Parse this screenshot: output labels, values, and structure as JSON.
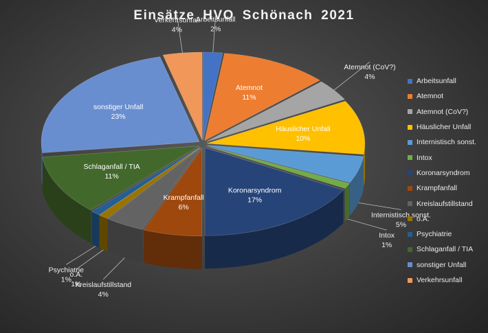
{
  "chart_data": {
    "type": "pie",
    "title": "Einsätze  HVO Schönach  2021",
    "legend_position": "right",
    "label_format": "{category}\n{percent}",
    "slices": [
      {
        "category": "Arbeitsunfall",
        "label": "Arbeitsunfall",
        "value": 2,
        "percent": "2%",
        "color": "#4472c4"
      },
      {
        "category": "Atemnot",
        "label": "Atemnot",
        "value": 11,
        "percent": "11%",
        "color": "#ed7d31"
      },
      {
        "category": "Atemnot (CoV?)",
        "label": "Atemnot (CoV?)",
        "value": 4,
        "percent": "4%",
        "color": "#a5a5a5"
      },
      {
        "category": "Häuslicher Unfall",
        "label": "Häuslicher Unfall",
        "value": 10,
        "percent": "10%",
        "color": "#ffc000"
      },
      {
        "category": "Internistisch sonst.",
        "label": "Internistisch sonst.",
        "value": 5,
        "percent": "5%",
        "color": "#5b9bd5"
      },
      {
        "category": "Intox",
        "label": "Intox",
        "value": 1,
        "percent": "1%",
        "color": "#70ad47"
      },
      {
        "category": "Koronarsyndrom",
        "label": "Koronarsyndrom",
        "value": 17,
        "percent": "17%",
        "color": "#264478"
      },
      {
        "category": "Krampfanfall",
        "label": "Krampfanfall",
        "value": 6,
        "percent": "6%",
        "color": "#9e480e"
      },
      {
        "category": "Kreislaufstillstand",
        "label": "Kreislaufstillstand",
        "value": 4,
        "percent": "4%",
        "color": "#636363"
      },
      {
        "category": "o.A.",
        "label": "o.A.",
        "value": 1,
        "percent": "1%",
        "color": "#997300"
      },
      {
        "category": "Psychiatrie",
        "label": "Psychiatrie",
        "value": 1,
        "percent": "1%",
        "color": "#255e91"
      },
      {
        "category": "Schlaganfall / TIA",
        "label": "Schlaganfall / TIA",
        "value": 11,
        "percent": "11%",
        "color": "#43682b"
      },
      {
        "category": "sonstiger Unfall",
        "label": "sonstiger Unfall",
        "value": 23,
        "percent": "23%",
        "color": "#698ed0"
      },
      {
        "category": "Verkehrsunfall",
        "label": "Verkehrsunfall",
        "value": 4,
        "percent": "4%",
        "color": "#f1975a"
      }
    ]
  }
}
